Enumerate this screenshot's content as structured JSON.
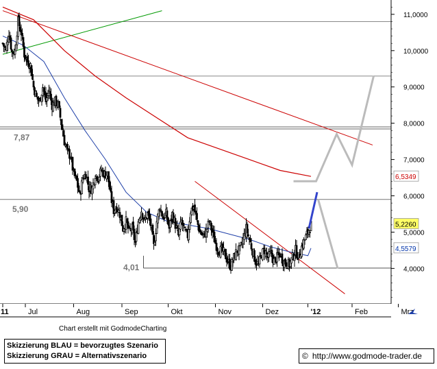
{
  "chart_data": {
    "type": "candlestick",
    "ylim": [
      3.1,
      11.3
    ],
    "y_ticks": [
      "11,0000",
      "10,0000",
      "9,0000",
      "8,0000",
      "7,0000",
      "6,0000",
      "5,0000",
      "4,0000"
    ],
    "y_tick_values": [
      11.0,
      10.0,
      9.0,
      8.0,
      7.0,
      6.0,
      5.0,
      4.0
    ],
    "x_ticks": [
      "11",
      "Jul",
      "Aug",
      "Sep",
      "Okt",
      "Nov",
      "Dez",
      "'12",
      "Feb",
      "Mrz"
    ],
    "x_tick_values": [
      0,
      22,
      69,
      116,
      161,
      207,
      253,
      297,
      340,
      385
    ],
    "x_unit": "trading days since first visible session",
    "last_day": 318,
    "horizontal_levels": [
      {
        "label": "7,87",
        "value": 7.87,
        "color": "#777777"
      },
      {
        "label": "5,90",
        "value": 5.9,
        "color": "#777777"
      },
      {
        "label": "4,01",
        "value": 4.01,
        "color": "#777777"
      }
    ],
    "extra_gridlines": [
      10.8,
      9.3
    ],
    "price_badges": [
      {
        "label": "6,5349",
        "value": 6.5349,
        "color": "#cc0000",
        "bg": "#ffffff"
      },
      {
        "label": "5,2260",
        "value": 5.226,
        "color": "#000000",
        "bg": "#ffff66"
      },
      {
        "label": "4,5579",
        "value": 4.5579,
        "color": "#0033aa",
        "bg": "#ffffff"
      }
    ],
    "close_anchors": [
      [
        0,
        10.2
      ],
      [
        3,
        10.0
      ],
      [
        6,
        10.5
      ],
      [
        9,
        9.95
      ],
      [
        12,
        10.0
      ],
      [
        15,
        10.8
      ],
      [
        18,
        10.5
      ],
      [
        21,
        9.9
      ],
      [
        24,
        9.7
      ],
      [
        27,
        9.6
      ],
      [
        30,
        9.0
      ],
      [
        33,
        8.7
      ],
      [
        36,
        8.6
      ],
      [
        39,
        9.0
      ],
      [
        42,
        8.6
      ],
      [
        45,
        8.9
      ],
      [
        48,
        8.5
      ],
      [
        51,
        8.6
      ],
      [
        54,
        8.5
      ],
      [
        57,
        8.0
      ],
      [
        60,
        7.5
      ],
      [
        63,
        7.2
      ],
      [
        66,
        7.1
      ],
      [
        69,
        6.6
      ],
      [
        72,
        6.4
      ],
      [
        75,
        6.0
      ],
      [
        78,
        6.5
      ],
      [
        81,
        6.6
      ],
      [
        84,
        6.2
      ],
      [
        87,
        6.2
      ],
      [
        90,
        6.6
      ],
      [
        93,
        6.5
      ],
      [
        96,
        6.7
      ],
      [
        99,
        6.6
      ],
      [
        102,
        6.6
      ],
      [
        105,
        6.0
      ],
      [
        108,
        5.6
      ],
      [
        111,
        5.7
      ],
      [
        114,
        5.5
      ],
      [
        117,
        5.1
      ],
      [
        120,
        5.3
      ],
      [
        123,
        5.0
      ],
      [
        126,
        5.1
      ],
      [
        129,
        4.7
      ],
      [
        132,
        5.3
      ],
      [
        135,
        5.6
      ],
      [
        138,
        5.3
      ],
      [
        141,
        5.5
      ],
      [
        144,
        5.2
      ],
      [
        147,
        4.6
      ],
      [
        150,
        5.3
      ],
      [
        153,
        5.7
      ],
      [
        156,
        5.4
      ],
      [
        159,
        5.5
      ],
      [
        162,
        5.1
      ],
      [
        165,
        5.5
      ],
      [
        168,
        5.2
      ],
      [
        171,
        4.9
      ],
      [
        174,
        5.3
      ],
      [
        177,
        5.0
      ],
      [
        180,
        4.9
      ],
      [
        183,
        5.6
      ],
      [
        186,
        5.7
      ],
      [
        189,
        5.3
      ],
      [
        192,
        5.0
      ],
      [
        195,
        4.9
      ],
      [
        198,
        5.0
      ],
      [
        201,
        5.3
      ],
      [
        204,
        5.0
      ],
      [
        207,
        4.7
      ],
      [
        210,
        4.5
      ],
      [
        213,
        4.5
      ],
      [
        216,
        4.4
      ],
      [
        219,
        4.2
      ],
      [
        222,
        4.05
      ],
      [
        225,
        4.3
      ],
      [
        228,
        4.5
      ],
      [
        231,
        4.5
      ],
      [
        234,
        4.8
      ],
      [
        237,
        5.1
      ],
      [
        240,
        4.8
      ],
      [
        243,
        4.5
      ],
      [
        246,
        4.2
      ],
      [
        249,
        4.1
      ],
      [
        252,
        4.4
      ],
      [
        255,
        4.5
      ],
      [
        258,
        4.3
      ],
      [
        261,
        4.4
      ],
      [
        264,
        4.2
      ],
      [
        267,
        4.3
      ],
      [
        270,
        4.4
      ],
      [
        273,
        4.2
      ],
      [
        276,
        4.15
      ],
      [
        279,
        4.1
      ],
      [
        282,
        4.3
      ],
      [
        285,
        4.5
      ],
      [
        288,
        4.3
      ],
      [
        291,
        4.6
      ],
      [
        294,
        4.8
      ],
      [
        297,
        5.0
      ],
      [
        300,
        5.2
      ]
    ],
    "sma_blue_anchors": [
      [
        0,
        10.4
      ],
      [
        20,
        10.15
      ],
      [
        40,
        9.7
      ],
      [
        60,
        8.7
      ],
      [
        80,
        7.8
      ],
      [
        100,
        7.0
      ],
      [
        120,
        6.1
      ],
      [
        140,
        5.55
      ],
      [
        160,
        5.3
      ],
      [
        180,
        5.2
      ],
      [
        200,
        5.1
      ],
      [
        220,
        4.95
      ],
      [
        240,
        4.8
      ],
      [
        260,
        4.6
      ],
      [
        280,
        4.45
      ],
      [
        297,
        4.35
      ],
      [
        300,
        4.5579
      ]
    ],
    "sma_red_anchors": [
      [
        0,
        11.2
      ],
      [
        30,
        10.85
      ],
      [
        60,
        10.0
      ],
      [
        90,
        9.3
      ],
      [
        120,
        8.7
      ],
      [
        150,
        8.15
      ],
      [
        180,
        7.6
      ],
      [
        210,
        7.3
      ],
      [
        240,
        7.0
      ],
      [
        270,
        6.7
      ],
      [
        300,
        6.5349
      ]
    ],
    "trend_lines": [
      {
        "color": "#009900",
        "from": [
          0,
          9.9
        ],
        "to": [
          155,
          11.1
        ]
      },
      {
        "color": "#cc0000",
        "from": [
          0,
          11.1
        ],
        "to": [
          360,
          7.4
        ]
      },
      {
        "color": "#cc0000",
        "from": [
          187,
          6.4
        ],
        "to": [
          333,
          3.3
        ]
      }
    ],
    "scenario_blue": [
      [
        298,
        5.1
      ],
      [
        306,
        6.1
      ]
    ],
    "scenario_grey": [
      [
        [
          283,
          6.4
        ],
        [
          305,
          6.4
        ],
        [
          325,
          7.7
        ],
        [
          340,
          6.85
        ],
        [
          361,
          9.3
        ]
      ],
      [
        [
          307,
          5.9
        ],
        [
          326,
          4.0
        ]
      ]
    ],
    "credit_text": "Chart erstellt mit GodmodeCharting",
    "legend_lines": [
      "Skizzierung BLAU = bevorzugtes Szenario",
      "Skizzierung GRAU = Alternativszenario"
    ],
    "copyright_symbol": "©",
    "url_text": "http://www.godmode-trader.de",
    "colors": {
      "candle": "#000000",
      "sma_blue": "#1e3fa8",
      "sma_red": "#cc0000",
      "grid": "#777777",
      "scenario_blue": "#3344cc",
      "scenario_grey": "#bbbbbb"
    }
  }
}
